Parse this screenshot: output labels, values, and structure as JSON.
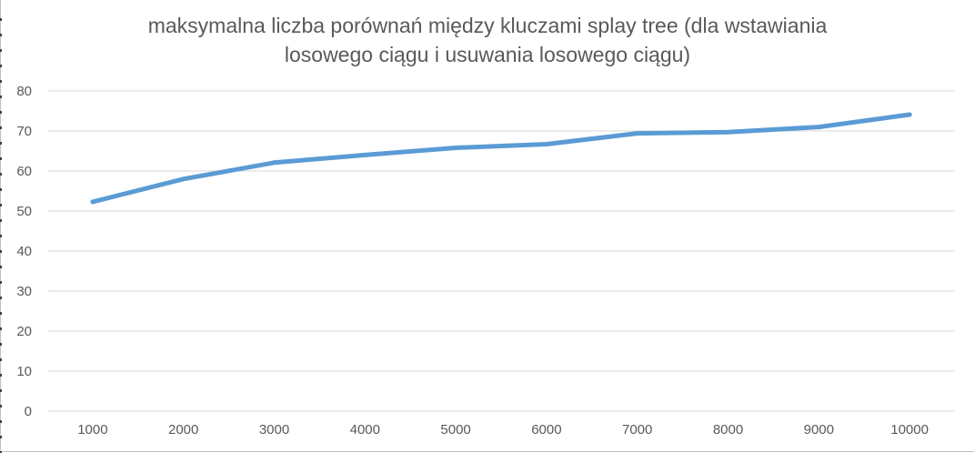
{
  "chart_data": {
    "type": "line",
    "title_lines": [
      "maksymalna liczba porównań między kluczami splay tree (dla wstawiania",
      "losowego ciągu i usuwania losowego ciągu)"
    ],
    "categories": [
      "1000",
      "2000",
      "3000",
      "4000",
      "5000",
      "6000",
      "7000",
      "8000",
      "9000",
      "10000"
    ],
    "series": [
      {
        "values": [
          52.3,
          58.0,
          62.1,
          64.0,
          65.8,
          66.7,
          69.4,
          69.7,
          71.0,
          74.1
        ],
        "color": "#5b9bd5"
      }
    ],
    "y_ticks": [
      "0",
      "10",
      "20",
      "30",
      "40",
      "50",
      "60",
      "70",
      "80"
    ],
    "ylim": [
      0,
      80
    ],
    "y_step": 10,
    "grid": true,
    "gridline_color": "#d9d9d9",
    "legend": "none"
  }
}
